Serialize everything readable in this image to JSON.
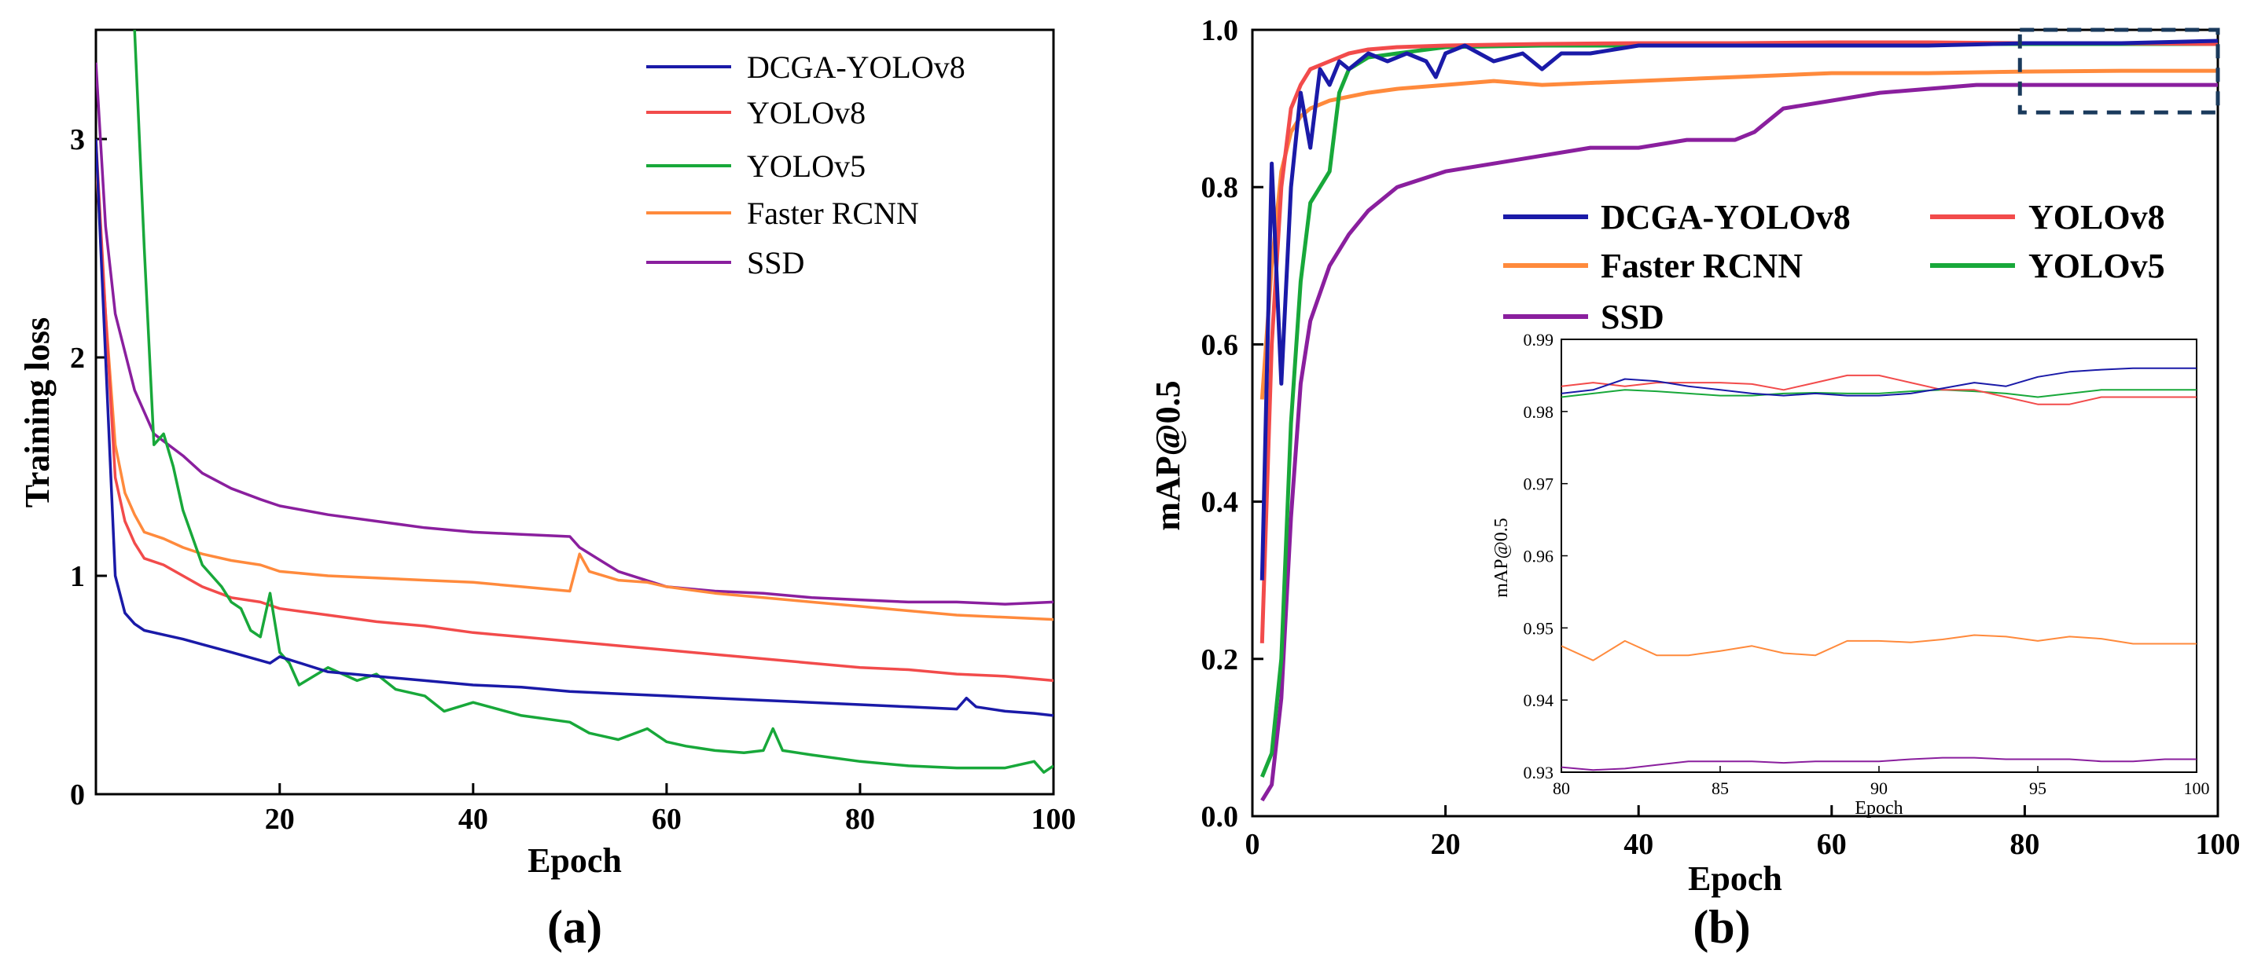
{
  "colors": {
    "DCGA-YOLOv8": "#1a1aa8",
    "YOLOv8": "#f24b4b",
    "YOLOv5": "#18a83a",
    "Faster RCNN": "#ff8a3c",
    "SSD": "#8a1f9e",
    "dashed_box": "#1a3a5c"
  },
  "chart_data": [
    {
      "id": "a",
      "panel_label": "(a)",
      "type": "line",
      "title": "",
      "xlabel": "Epoch",
      "ylabel": "Training loss",
      "xlim": [
        1,
        100
      ],
      "ylim": [
        0,
        3.5
      ],
      "xticks": [
        20,
        40,
        60,
        80,
        100
      ],
      "yticks": [
        0,
        1,
        2,
        3
      ],
      "legend_placement": "top-right",
      "series": [
        {
          "name": "DCGA-YOLOv8",
          "x": [
            1,
            2,
            3,
            4,
            5,
            6,
            8,
            10,
            15,
            19,
            20,
            25,
            30,
            35,
            40,
            45,
            50,
            55,
            60,
            65,
            70,
            75,
            80,
            85,
            90,
            91,
            92,
            95,
            98,
            100
          ],
          "y": [
            3.0,
            2.0,
            1.0,
            0.83,
            0.78,
            0.75,
            0.73,
            0.71,
            0.65,
            0.6,
            0.63,
            0.56,
            0.54,
            0.52,
            0.5,
            0.49,
            0.47,
            0.46,
            0.45,
            0.44,
            0.43,
            0.42,
            0.41,
            0.4,
            0.39,
            0.44,
            0.4,
            0.38,
            0.37,
            0.36
          ]
        },
        {
          "name": "YOLOv8",
          "x": [
            1,
            2,
            3,
            4,
            5,
            6,
            8,
            10,
            12,
            15,
            18,
            20,
            25,
            30,
            35,
            40,
            45,
            50,
            55,
            60,
            65,
            70,
            75,
            80,
            85,
            90,
            95,
            100
          ],
          "y": [
            3.0,
            2.2,
            1.45,
            1.25,
            1.15,
            1.08,
            1.05,
            1.0,
            0.95,
            0.9,
            0.88,
            0.85,
            0.82,
            0.79,
            0.77,
            0.74,
            0.72,
            0.7,
            0.68,
            0.66,
            0.64,
            0.62,
            0.6,
            0.58,
            0.57,
            0.55,
            0.54,
            0.52
          ]
        },
        {
          "name": "YOLOv5",
          "x": [
            5,
            6,
            7,
            8,
            9,
            10,
            12,
            14,
            15,
            16,
            17,
            18,
            19,
            20,
            21,
            22,
            25,
            28,
            30,
            32,
            35,
            37,
            40,
            45,
            50,
            52,
            55,
            58,
            60,
            62,
            65,
            68,
            70,
            71,
            72,
            75,
            80,
            85,
            90,
            95,
            98,
            99,
            100
          ],
          "y": [
            3.5,
            2.5,
            1.6,
            1.65,
            1.5,
            1.3,
            1.05,
            0.95,
            0.88,
            0.85,
            0.75,
            0.72,
            0.92,
            0.65,
            0.6,
            0.5,
            0.58,
            0.52,
            0.55,
            0.48,
            0.45,
            0.38,
            0.42,
            0.36,
            0.33,
            0.28,
            0.25,
            0.3,
            0.24,
            0.22,
            0.2,
            0.19,
            0.2,
            0.3,
            0.2,
            0.18,
            0.15,
            0.13,
            0.12,
            0.12,
            0.15,
            0.1,
            0.13
          ]
        },
        {
          "name": "Faster RCNN",
          "x": [
            1,
            2,
            3,
            4,
            5,
            6,
            8,
            10,
            12,
            15,
            18,
            20,
            25,
            30,
            35,
            40,
            45,
            50,
            51,
            52,
            55,
            58,
            60,
            65,
            70,
            75,
            80,
            85,
            90,
            95,
            100
          ],
          "y": [
            2.9,
            2.2,
            1.6,
            1.38,
            1.28,
            1.2,
            1.17,
            1.13,
            1.1,
            1.07,
            1.05,
            1.02,
            1.0,
            0.99,
            0.98,
            0.97,
            0.95,
            0.93,
            1.1,
            1.02,
            0.98,
            0.97,
            0.95,
            0.92,
            0.9,
            0.88,
            0.86,
            0.84,
            0.82,
            0.81,
            0.8
          ]
        },
        {
          "name": "SSD",
          "x": [
            1,
            2,
            3,
            5,
            7,
            10,
            12,
            15,
            18,
            20,
            25,
            30,
            35,
            40,
            45,
            50,
            51,
            55,
            60,
            65,
            70,
            75,
            80,
            85,
            90,
            95,
            100
          ],
          "y": [
            3.35,
            2.6,
            2.2,
            1.85,
            1.65,
            1.55,
            1.47,
            1.4,
            1.35,
            1.32,
            1.28,
            1.25,
            1.22,
            1.2,
            1.19,
            1.18,
            1.13,
            1.02,
            0.95,
            0.93,
            0.92,
            0.9,
            0.89,
            0.88,
            0.88,
            0.87,
            0.88
          ]
        }
      ]
    },
    {
      "id": "b",
      "panel_label": "(b)",
      "type": "line",
      "title": "",
      "xlabel": "Epoch",
      "ylabel": "mAP@0.5",
      "xlim": [
        0,
        100
      ],
      "ylim": [
        0.0,
        1.0
      ],
      "xticks": [
        0,
        20,
        40,
        60,
        80,
        100
      ],
      "yticks": [
        0.0,
        0.2,
        0.4,
        0.6,
        0.8,
        1.0
      ],
      "legend_placement": "upper-right, two columns",
      "zoom_box": {
        "xlim": [
          79.5,
          100
        ],
        "ylim": [
          0.895,
          1.0
        ]
      },
      "series": [
        {
          "name": "DCGA-YOLOv8",
          "x": [
            1,
            2,
            3,
            4,
            5,
            6,
            7,
            8,
            9,
            10,
            12,
            14,
            16,
            18,
            19,
            20,
            22,
            25,
            28,
            30,
            32,
            35,
            40,
            50,
            60,
            70,
            80,
            90,
            100
          ],
          "y": [
            0.3,
            0.83,
            0.55,
            0.8,
            0.92,
            0.85,
            0.95,
            0.93,
            0.96,
            0.95,
            0.97,
            0.96,
            0.97,
            0.96,
            0.94,
            0.97,
            0.98,
            0.96,
            0.97,
            0.95,
            0.97,
            0.97,
            0.98,
            0.98,
            0.98,
            0.98,
            0.983,
            0.983,
            0.986
          ]
        },
        {
          "name": "YOLOv8",
          "x": [
            1,
            2,
            3,
            4,
            5,
            6,
            8,
            10,
            12,
            15,
            20,
            30,
            40,
            50,
            60,
            70,
            80,
            90,
            100
          ],
          "y": [
            0.22,
            0.6,
            0.8,
            0.9,
            0.93,
            0.95,
            0.96,
            0.97,
            0.975,
            0.978,
            0.98,
            0.982,
            0.983,
            0.983,
            0.984,
            0.984,
            0.983,
            0.983,
            0.982
          ]
        },
        {
          "name": "Faster RCNN",
          "x": [
            1,
            2,
            3,
            4,
            5,
            6,
            8,
            10,
            12,
            15,
            20,
            25,
            30,
            40,
            50,
            60,
            70,
            80,
            90,
            100
          ],
          "y": [
            0.53,
            0.7,
            0.82,
            0.87,
            0.89,
            0.9,
            0.91,
            0.915,
            0.92,
            0.925,
            0.93,
            0.935,
            0.93,
            0.935,
            0.94,
            0.945,
            0.945,
            0.947,
            0.948,
            0.948
          ]
        },
        {
          "name": "YOLOv5",
          "x": [
            1,
            2,
            3,
            4,
            5,
            6,
            7,
            8,
            9,
            10,
            12,
            15,
            20,
            30,
            40,
            50,
            60,
            70,
            80,
            90,
            100
          ],
          "y": [
            0.05,
            0.08,
            0.2,
            0.5,
            0.68,
            0.78,
            0.8,
            0.82,
            0.92,
            0.95,
            0.965,
            0.97,
            0.978,
            0.98,
            0.98,
            0.981,
            0.981,
            0.982,
            0.982,
            0.982,
            0.982
          ]
        },
        {
          "name": "SSD",
          "x": [
            1,
            2,
            3,
            4,
            5,
            6,
            8,
            10,
            12,
            15,
            20,
            25,
            30,
            35,
            40,
            45,
            50,
            52,
            55,
            60,
            65,
            70,
            75,
            80,
            85,
            90,
            95,
            100
          ],
          "y": [
            0.02,
            0.04,
            0.15,
            0.38,
            0.55,
            0.63,
            0.7,
            0.74,
            0.77,
            0.8,
            0.82,
            0.83,
            0.84,
            0.85,
            0.85,
            0.86,
            0.86,
            0.87,
            0.9,
            0.91,
            0.92,
            0.925,
            0.93,
            0.93,
            0.93,
            0.93,
            0.93,
            0.93
          ]
        }
      ]
    },
    {
      "id": "b_inset",
      "type": "line",
      "title": "",
      "xlabel": "Epoch",
      "ylabel": "mAP@0.5",
      "xlim": [
        80,
        100
      ],
      "ylim": [
        0.93,
        0.99
      ],
      "xticks": [
        80,
        85,
        90,
        95,
        100
      ],
      "yticks": [
        0.93,
        0.94,
        0.95,
        0.96,
        0.97,
        0.98,
        0.99
      ],
      "series": [
        {
          "name": "DCGA-YOLOv8",
          "x": [
            80,
            81,
            82,
            83,
            84,
            85,
            86,
            87,
            88,
            89,
            90,
            91,
            92,
            93,
            94,
            95,
            96,
            97,
            98,
            99,
            100
          ],
          "y": [
            0.9825,
            0.983,
            0.9845,
            0.9842,
            0.9835,
            0.983,
            0.9825,
            0.9822,
            0.9825,
            0.9822,
            0.9822,
            0.9825,
            0.9832,
            0.984,
            0.9835,
            0.9848,
            0.9855,
            0.9858,
            0.986,
            0.986,
            0.986
          ]
        },
        {
          "name": "YOLOv8",
          "x": [
            80,
            81,
            82,
            83,
            84,
            85,
            86,
            87,
            88,
            89,
            90,
            91,
            92,
            93,
            94,
            95,
            96,
            97,
            98,
            99,
            100
          ],
          "y": [
            0.9835,
            0.984,
            0.9835,
            0.984,
            0.984,
            0.984,
            0.9838,
            0.983,
            0.984,
            0.985,
            0.985,
            0.984,
            0.983,
            0.983,
            0.982,
            0.981,
            0.981,
            0.982,
            0.982,
            0.982,
            0.982
          ]
        },
        {
          "name": "YOLOv5",
          "x": [
            80,
            81,
            82,
            83,
            84,
            85,
            86,
            87,
            88,
            89,
            90,
            91,
            92,
            93,
            94,
            95,
            96,
            97,
            98,
            99,
            100
          ],
          "y": [
            0.982,
            0.9825,
            0.983,
            0.9828,
            0.9825,
            0.9822,
            0.9822,
            0.9825,
            0.9826,
            0.9825,
            0.9825,
            0.9828,
            0.983,
            0.9828,
            0.9825,
            0.982,
            0.9825,
            0.983,
            0.983,
            0.983,
            0.983
          ]
        },
        {
          "name": "Faster RCNN",
          "x": [
            80,
            81,
            82,
            83,
            84,
            85,
            86,
            87,
            88,
            89,
            90,
            91,
            92,
            93,
            94,
            95,
            96,
            97,
            98,
            99,
            100
          ],
          "y": [
            0.9475,
            0.9455,
            0.9482,
            0.9462,
            0.9462,
            0.9468,
            0.9475,
            0.9465,
            0.9462,
            0.9482,
            0.9482,
            0.948,
            0.9484,
            0.949,
            0.9488,
            0.9482,
            0.9488,
            0.9485,
            0.9478,
            0.9478,
            0.9478
          ]
        },
        {
          "name": "SSD",
          "x": [
            80,
            81,
            82,
            83,
            84,
            85,
            86,
            87,
            88,
            89,
            90,
            91,
            92,
            93,
            94,
            95,
            96,
            97,
            98,
            99,
            100
          ],
          "y": [
            0.9307,
            0.9303,
            0.9305,
            0.931,
            0.9315,
            0.9315,
            0.9315,
            0.9313,
            0.9315,
            0.9315,
            0.9315,
            0.9318,
            0.932,
            0.932,
            0.9318,
            0.9318,
            0.9318,
            0.9315,
            0.9315,
            0.9318,
            0.9318
          ]
        }
      ]
    }
  ]
}
